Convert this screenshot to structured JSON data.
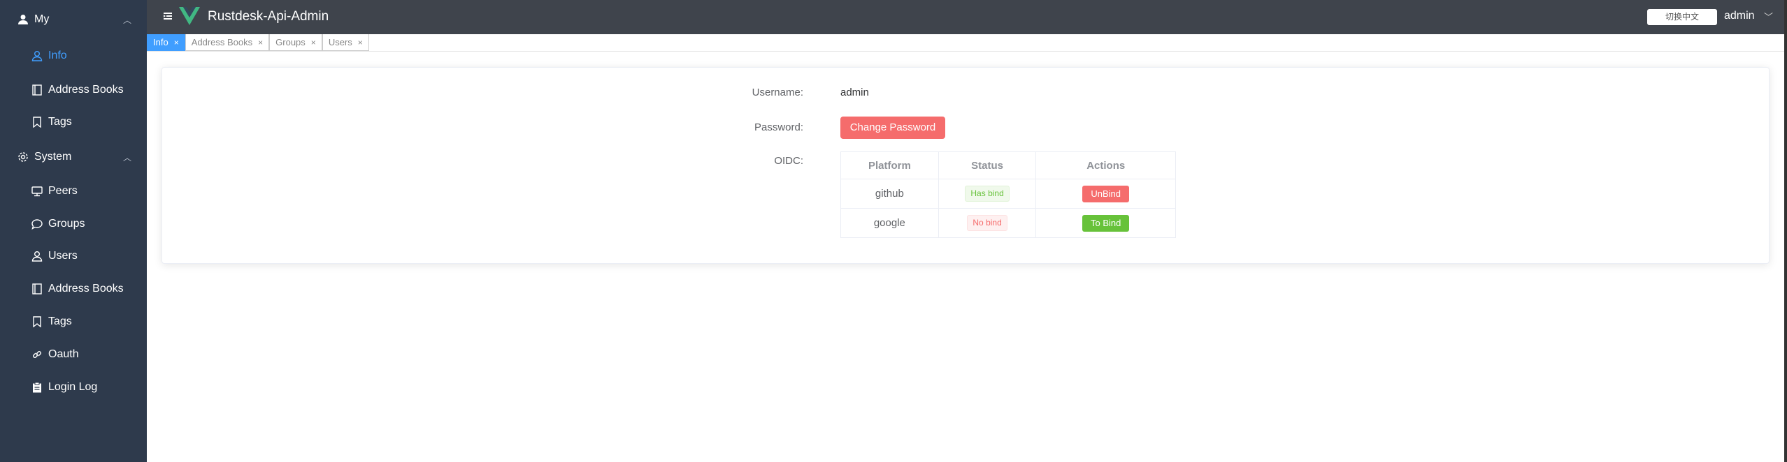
{
  "header": {
    "title": "Rustdesk-Api-Admin",
    "lang_button": "切换中文",
    "user": "admin"
  },
  "sidebar": {
    "groups": [
      {
        "label": "My",
        "icon": "user-filled-icon",
        "items": [
          {
            "label": "Info",
            "icon": "user-icon",
            "active": true
          },
          {
            "label": "Address Books",
            "icon": "notebook-icon"
          },
          {
            "label": "Tags",
            "icon": "bookmark-icon"
          }
        ]
      },
      {
        "label": "System",
        "icon": "gear-icon",
        "items": [
          {
            "label": "Peers",
            "icon": "monitor-icon"
          },
          {
            "label": "Groups",
            "icon": "chat-bubble-icon"
          },
          {
            "label": "Users",
            "icon": "user-icon"
          },
          {
            "label": "Address Books",
            "icon": "notebook-icon"
          },
          {
            "label": "Tags",
            "icon": "bookmark-icon"
          },
          {
            "label": "Oauth",
            "icon": "link-icon"
          },
          {
            "label": "Login Log",
            "icon": "clipboard-icon"
          }
        ]
      }
    ]
  },
  "tabs": [
    {
      "label": "Info",
      "active": true
    },
    {
      "label": "Address Books"
    },
    {
      "label": "Groups"
    },
    {
      "label": "Users"
    }
  ],
  "tab_close": "×",
  "info": {
    "username_label": "Username:",
    "username": "admin",
    "password_label": "Password:",
    "change_password": "Change Password",
    "oidc_label": "OIDC:",
    "columns": [
      "Platform",
      "Status",
      "Actions"
    ],
    "rows": [
      {
        "platform": "github",
        "status": "Has bind",
        "action": "UnBind"
      },
      {
        "platform": "google",
        "status": "No bind",
        "action": "To Bind"
      }
    ]
  },
  "colors": {
    "accent": "#409eff",
    "danger": "#f56c6c",
    "success": "#67c23a",
    "sidebar": "#2e3a4c",
    "header": "#3f444c"
  }
}
